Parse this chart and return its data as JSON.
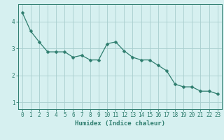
{
  "x": [
    0,
    1,
    2,
    3,
    4,
    5,
    6,
    7,
    8,
    9,
    10,
    11,
    12,
    13,
    14,
    15,
    16,
    17,
    18,
    19,
    20,
    21,
    22,
    23
  ],
  "y": [
    4.35,
    3.65,
    3.25,
    2.88,
    2.88,
    2.88,
    2.68,
    2.75,
    2.58,
    2.58,
    3.18,
    3.25,
    2.92,
    2.68,
    2.58,
    2.58,
    2.38,
    2.18,
    1.68,
    1.58,
    1.58,
    1.42,
    1.42,
    1.32
  ],
  "line_color": "#2e7d6e",
  "marker": "D",
  "marker_size": 2.5,
  "bg_color": "#d6f0f0",
  "grid_color": "#a8cece",
  "xlabel": "Humidex (Indice chaleur)",
  "xlim": [
    -0.5,
    23.5
  ],
  "ylim": [
    0.75,
    4.65
  ],
  "yticks": [
    1,
    2,
    3,
    4
  ],
  "xticks": [
    0,
    1,
    2,
    3,
    4,
    5,
    6,
    7,
    8,
    9,
    10,
    11,
    12,
    13,
    14,
    15,
    16,
    17,
    18,
    19,
    20,
    21,
    22,
    23
  ],
  "tick_color": "#2e7d6e",
  "label_color": "#2e7d6e",
  "axis_color": "#2e7d6e",
  "xlabel_fontsize": 6.5,
  "tick_fontsize": 5.5
}
